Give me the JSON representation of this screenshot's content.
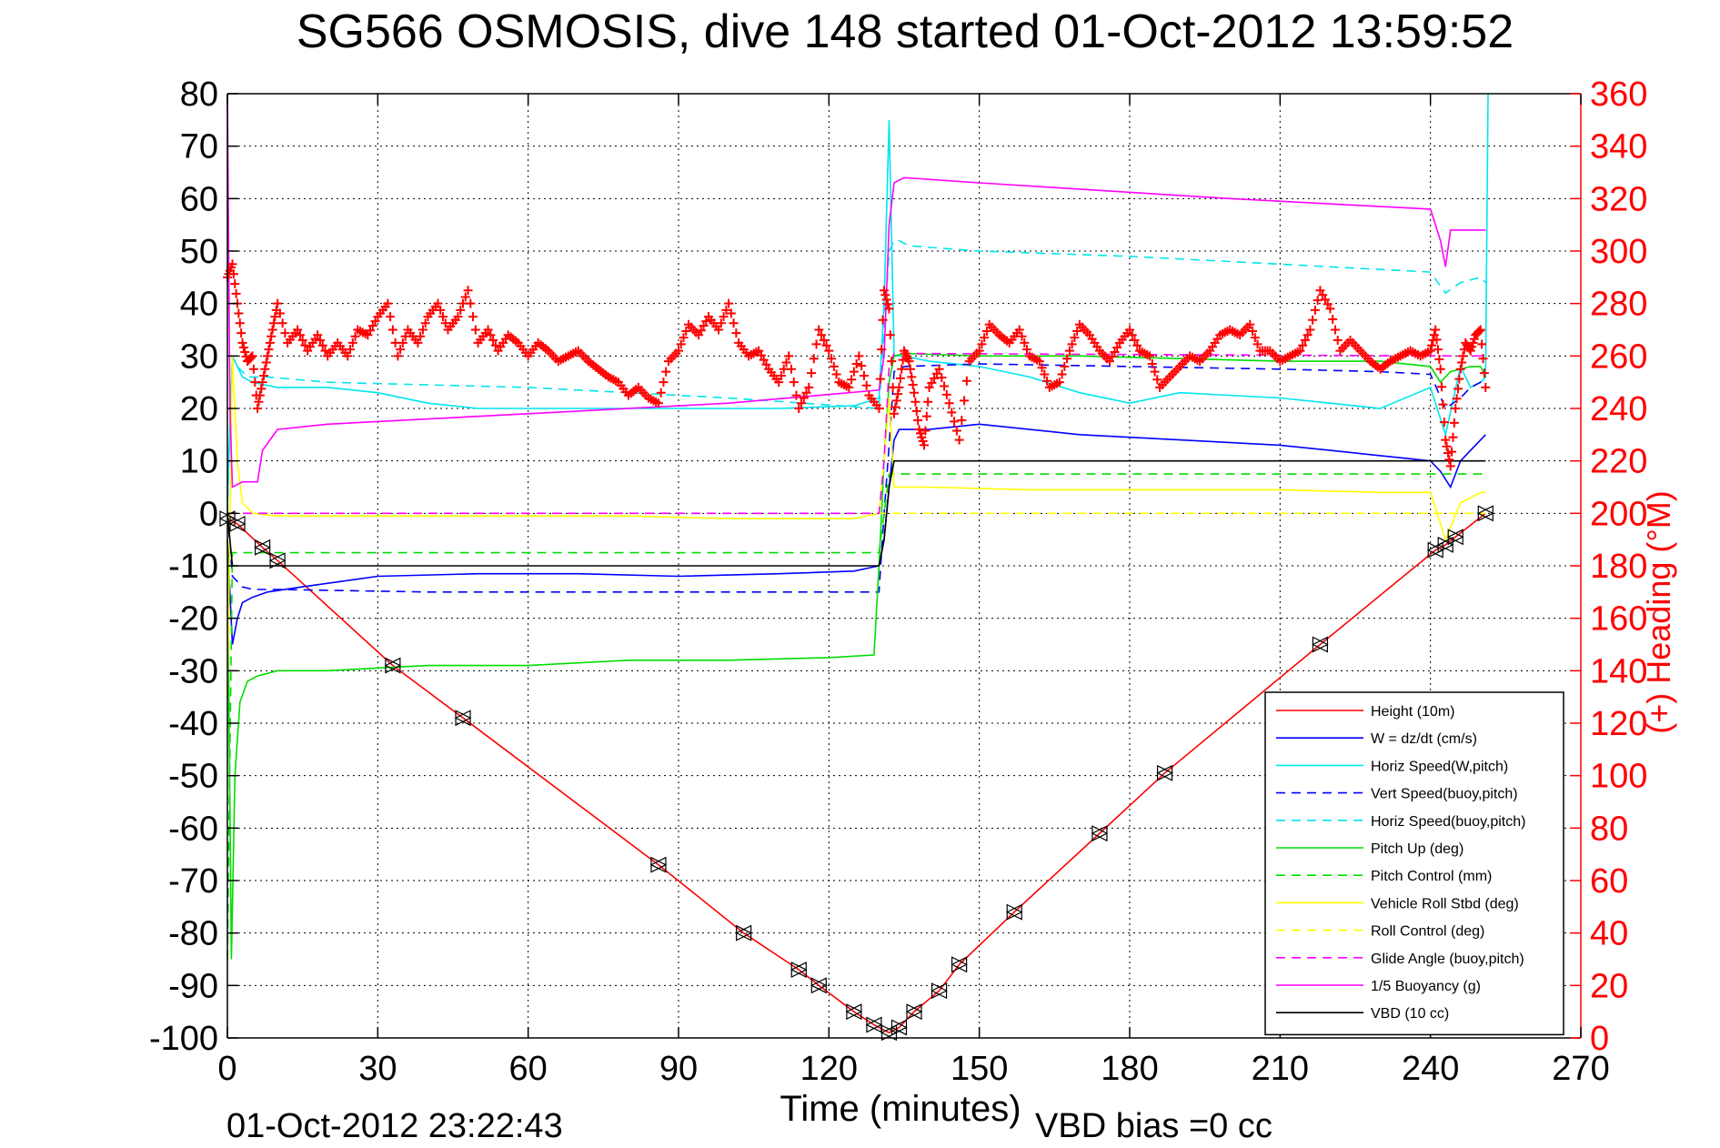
{
  "chart_data": {
    "type": "line",
    "title": "SG566 OSMOSIS, dive 148 started 01-Oct-2012 13:59:52",
    "xlabel": "Time (minutes)",
    "ylabel": "",
    "y2label": "(+) Heading (°M)",
    "xlim": [
      0,
      270
    ],
    "ylim": [
      -100,
      80
    ],
    "y2lim": [
      0,
      360
    ],
    "xticks": [
      "0",
      "30",
      "60",
      "90",
      "120",
      "150",
      "180",
      "210",
      "240",
      "270"
    ],
    "yticks": [
      "80",
      "70",
      "60",
      "50",
      "40",
      "30",
      "20",
      "10",
      "0",
      "-10",
      "-20",
      "-30",
      "-40",
      "-50",
      "-60",
      "-70",
      "-80",
      "-90",
      "-100"
    ],
    "y2ticks": [
      "360",
      "340",
      "320",
      "300",
      "280",
      "260",
      "240",
      "220",
      "200",
      "180",
      "160",
      "140",
      "120",
      "100",
      "80",
      "60",
      "40",
      "20",
      "0"
    ],
    "grid": true,
    "legend_position": "bottom-right",
    "footer_left": "01-Oct-2012 23:22:43",
    "footer_right": "VBD bias =0 cc",
    "colors": {
      "red": "#ff0000",
      "blue": "#0000ff",
      "cyan": "#00e5ee",
      "green": "#00dd00",
      "yellow": "#ffff00",
      "magenta": "#ff00ff",
      "black": "#000000"
    },
    "series": [
      {
        "name": "Height (10m)",
        "color": "#ff0000",
        "dash": "solid",
        "markers": "triangle-pairs",
        "x": [
          0,
          2,
          7,
          10,
          33,
          47,
          86,
          103,
          114,
          118,
          125,
          129,
          132,
          134,
          137,
          142,
          146,
          157,
          174,
          187,
          218,
          241,
          243,
          245,
          251
        ],
        "y": [
          -1,
          -2,
          -6.5,
          -9,
          -29,
          -39,
          -67,
          -80,
          -87,
          -90,
          -95,
          -97.5,
          -99,
          -98,
          -95,
          -91,
          -86,
          -76,
          -61,
          -49.5,
          -25,
          -7,
          -6,
          -4.5,
          0
        ]
      },
      {
        "name": "W = dz/dt (cm/s)",
        "color": "#0000ff",
        "dash": "solid",
        "x": [
          0,
          1,
          2,
          3,
          5,
          8,
          15,
          30,
          50,
          70,
          90,
          110,
          125,
          130,
          131,
          132,
          133,
          134,
          140,
          150,
          170,
          190,
          210,
          220,
          230,
          240,
          242,
          244,
          246,
          248,
          250,
          251
        ],
        "y": [
          -5,
          -25,
          -20,
          -17,
          -16,
          -15,
          -14,
          -12,
          -11.5,
          -11.5,
          -12,
          -11.5,
          -11,
          -10,
          -5,
          5,
          14,
          16,
          16,
          17,
          15,
          14,
          13,
          12,
          11,
          10,
          8,
          5,
          10,
          12,
          14,
          15
        ]
      },
      {
        "name": "Horiz Speed(W,pitch)",
        "color": "#00e5ee",
        "dash": "solid",
        "x": [
          0,
          1,
          2,
          3,
          5,
          10,
          20,
          30,
          40,
          50,
          70,
          90,
          110,
          125,
          130,
          131,
          132,
          133,
          135,
          140,
          150,
          160,
          170,
          180,
          190,
          210,
          220,
          230,
          240,
          243,
          246,
          248,
          250,
          251,
          251.5
        ],
        "y": [
          2,
          30,
          28,
          26,
          25,
          24,
          24,
          23,
          21,
          20,
          20,
          20,
          20,
          20.5,
          22,
          40,
          75,
          30,
          30,
          29,
          28,
          26,
          23,
          21,
          23,
          22,
          21,
          20,
          24,
          15,
          28,
          24,
          25,
          26,
          80
        ]
      },
      {
        "name": "Vert Speed(buoy,pitch)",
        "color": "#0000ff",
        "dash": "dashed",
        "x": [
          0,
          1,
          2,
          3,
          5,
          10,
          40,
          90,
          130,
          131,
          132,
          133,
          135,
          150,
          180,
          210,
          230,
          240,
          243,
          246,
          248,
          250,
          251
        ],
        "y": [
          0,
          -12,
          -13,
          -14,
          -14.5,
          -14.5,
          -15,
          -15,
          -15,
          0,
          13,
          27,
          28,
          28.5,
          28,
          27.5,
          27,
          26.5,
          20,
          22,
          24,
          25,
          25
        ]
      },
      {
        "name": "Horiz Speed(buoy,pitch)",
        "color": "#00e5ee",
        "dash": "dashed",
        "x": [
          0,
          1,
          2,
          4,
          8,
          20,
          60,
          100,
          130,
          131,
          132,
          133,
          134,
          136,
          150,
          180,
          200,
          220,
          240,
          243,
          246,
          250,
          251
        ],
        "y": [
          0,
          30,
          28,
          26,
          26,
          25,
          24,
          22,
          20,
          35,
          50,
          52,
          52,
          51,
          50,
          49,
          48,
          47,
          46,
          42,
          44,
          45,
          44
        ]
      },
      {
        "name": "Pitch Up (deg)",
        "color": "#00dd00",
        "dash": "solid",
        "x": [
          0,
          0.8,
          1.5,
          2.5,
          4,
          6,
          10,
          20,
          40,
          60,
          80,
          100,
          120,
          129,
          130,
          131,
          132,
          133,
          135,
          150,
          170,
          190,
          210,
          230,
          240,
          242,
          244,
          248,
          250,
          251
        ],
        "y": [
          -5,
          -85,
          -50,
          -36,
          -32,
          -31,
          -30,
          -30,
          -29,
          -29,
          -28,
          -28,
          -27.5,
          -27,
          -10,
          10,
          25,
          30,
          30.5,
          30,
          30,
          29.5,
          29,
          29,
          28,
          25,
          27,
          28,
          28,
          26
        ]
      },
      {
        "name": "Pitch Control (mm)",
        "color": "#00dd00",
        "dash": "dashed",
        "x": [
          0,
          1,
          3,
          130,
          131,
          132,
          245,
          246,
          251
        ],
        "y": [
          -85,
          -7.5,
          -7.5,
          -7.5,
          0,
          7.5,
          7.5,
          7.5,
          7.5
        ]
      },
      {
        "name": "Vehicle Roll Stbd (deg)",
        "color": "#ffff00",
        "dash": "solid",
        "x": [
          0,
          1,
          2,
          3,
          5,
          10,
          40,
          80,
          100,
          125,
          130,
          131,
          132,
          133,
          140,
          160,
          190,
          210,
          230,
          240,
          243,
          246,
          250,
          251
        ],
        "y": [
          -35,
          30,
          10,
          2,
          0,
          -0.5,
          -0.5,
          -0.5,
          -1,
          -1,
          0,
          10,
          22,
          5,
          5,
          4.5,
          4.5,
          4.5,
          4,
          4,
          -5,
          2,
          4,
          4
        ]
      },
      {
        "name": "Roll Control (deg)",
        "color": "#ffff00",
        "dash": "dashed",
        "x": [
          0,
          2,
          130,
          131,
          132,
          245,
          251
        ],
        "y": [
          0,
          0,
          0,
          0,
          0,
          0,
          0
        ]
      },
      {
        "name": "Glide Angle (buoy,pitch)",
        "color": "#ff00ff",
        "dash": "dashed",
        "x": [
          0,
          2,
          130,
          131,
          132,
          133,
          245,
          251
        ],
        "y": [
          0,
          0,
          0,
          10,
          28,
          30.5,
          30,
          30
        ]
      },
      {
        "name": "1/5 Buoyancy (g)",
        "color": "#ff00ff",
        "dash": "solid",
        "x": [
          0,
          0.5,
          1,
          3,
          6,
          7,
          10,
          20,
          60,
          100,
          130,
          131,
          132,
          133,
          135,
          150,
          200,
          240,
          242,
          243,
          244,
          251
        ],
        "y": [
          80,
          20,
          5,
          6,
          6,
          12,
          16,
          17,
          19,
          21,
          23.5,
          30,
          55,
          63,
          64,
          63,
          60,
          58,
          52,
          47,
          54,
          54
        ]
      },
      {
        "name": "VBD (10 cc)",
        "color": "#000000",
        "dash": "solid",
        "x": [
          0,
          1,
          2,
          130,
          131,
          132,
          133,
          134,
          241,
          243,
          245,
          251
        ],
        "y": [
          0,
          -10,
          -10,
          -10,
          -5,
          5,
          10,
          10,
          10,
          10,
          10,
          10
        ]
      },
      {
        "name": "Heading",
        "color": "#ff0000",
        "dash": "none",
        "markers": "plus",
        "axis": "right",
        "x": [
          0,
          1,
          2,
          3,
          4,
          5,
          6,
          7,
          8,
          9,
          10,
          12,
          14,
          16,
          18,
          20,
          22,
          24,
          26,
          28,
          30,
          32,
          34,
          36,
          38,
          40,
          42,
          44,
          46,
          48,
          50,
          52,
          54,
          56,
          58,
          60,
          62,
          64,
          66,
          68,
          70,
          72,
          74,
          76,
          78,
          80,
          82,
          84,
          86,
          88,
          90,
          92,
          94,
          96,
          98,
          100,
          102,
          104,
          106,
          108,
          110,
          112,
          114,
          116,
          118,
          120,
          122,
          124,
          126,
          128,
          130,
          131,
          132,
          133,
          134,
          135,
          136,
          137,
          138,
          139,
          140,
          142,
          144,
          146,
          148,
          150,
          152,
          154,
          156,
          158,
          160,
          162,
          164,
          166,
          168,
          170,
          172,
          174,
          176,
          178,
          180,
          182,
          184,
          186,
          188,
          190,
          192,
          194,
          196,
          198,
          200,
          202,
          204,
          206,
          208,
          210,
          212,
          214,
          216,
          218,
          220,
          222,
          224,
          226,
          228,
          230,
          232,
          234,
          236,
          238,
          240,
          241,
          242,
          243,
          244,
          245,
          246,
          247,
          248,
          249,
          250,
          251
        ],
        "y": [
          290,
          295,
          280,
          265,
          258,
          260,
          240,
          250,
          260,
          270,
          280,
          265,
          270,
          262,
          268,
          260,
          265,
          260,
          270,
          268,
          275,
          280,
          260,
          270,
          265,
          275,
          280,
          270,
          275,
          285,
          265,
          270,
          262,
          268,
          265,
          260,
          265,
          262,
          258,
          260,
          262,
          258,
          255,
          252,
          250,
          245,
          248,
          244,
          242,
          258,
          262,
          272,
          268,
          275,
          270,
          280,
          265,
          260,
          262,
          255,
          250,
          260,
          240,
          248,
          270,
          262,
          250,
          248,
          260,
          245,
          240,
          285,
          278,
          238,
          248,
          262,
          258,
          246,
          232,
          226,
          248,
          255,
          242,
          228,
          258,
          262,
          272,
          268,
          265,
          270,
          260,
          258,
          248,
          250,
          262,
          272,
          268,
          262,
          258,
          265,
          270,
          262,
          260,
          248,
          252,
          256,
          260,
          258,
          262,
          268,
          270,
          268,
          272,
          262,
          262,
          258,
          260,
          262,
          270,
          285,
          278,
          262,
          266,
          262,
          258,
          255,
          258,
          260,
          262,
          260,
          262,
          270,
          255,
          228,
          218,
          240,
          255,
          265,
          262,
          268,
          270,
          248
        ]
      }
    ]
  }
}
